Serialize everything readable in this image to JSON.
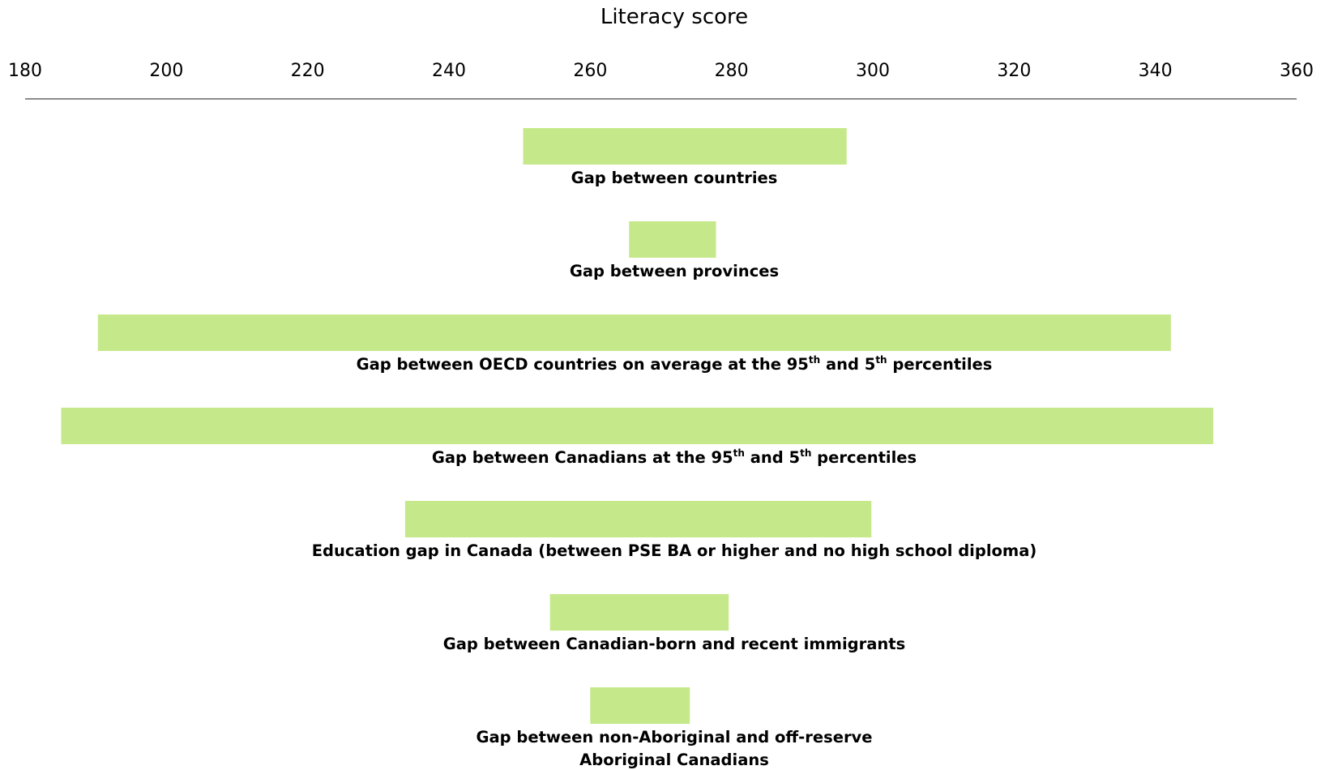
{
  "chart_data": {
    "type": "bar",
    "orientation": "horizontal-range",
    "title": "",
    "xlabel": "Literacy score",
    "ylabel": "",
    "xlim": [
      180,
      360
    ],
    "x_ticks": [
      "180",
      "200",
      "220",
      "240",
      "260",
      "280",
      "300",
      "320",
      "340",
      "360"
    ],
    "axis_position": "top",
    "grid": false,
    "legend": "none",
    "bar_color": "#c5e98a",
    "axis_line_color": "#8c8c8c",
    "bars": [
      {
        "label_lines": [
          [
            {
              "t": "Gap between countries"
            }
          ]
        ],
        "start": 250.5,
        "end": 296.3
      },
      {
        "label_lines": [
          [
            {
              "t": "Gap between provinces"
            }
          ]
        ],
        "start": 265.5,
        "end": 277.8
      },
      {
        "label_lines": [
          [
            {
              "t": "Gap between OECD countries on average at the 95"
            },
            {
              "t": "th",
              "sup": true
            },
            {
              "t": " and 5"
            },
            {
              "t": "th",
              "sup": true
            },
            {
              "t": "  percentiles"
            }
          ]
        ],
        "start": 190.3,
        "end": 342.2
      },
      {
        "label_lines": [
          [
            {
              "t": "Gap between Canadians at the 95"
            },
            {
              "t": "th",
              "sup": true
            },
            {
              "t": " and 5"
            },
            {
              "t": "th",
              "sup": true
            },
            {
              "t": " percentiles"
            }
          ]
        ],
        "start": 185.1,
        "end": 348.2
      },
      {
        "label_lines": [
          [
            {
              "t": "Education gap  in Canada (between PSE BA or higher and no high school diploma)"
            }
          ]
        ],
        "start": 233.8,
        "end": 299.8
      },
      {
        "label_lines": [
          [
            {
              "t": "Gap between Canadian-born and recent immigrants"
            }
          ]
        ],
        "start": 254.3,
        "end": 279.6
      },
      {
        "label_lines": [
          [
            {
              "t": "Gap between non-Aboriginal and off-reserve"
            }
          ],
          [
            {
              "t": "Aboriginal Canadians"
            }
          ]
        ],
        "start": 260.0,
        "end": 274.1
      }
    ]
  }
}
